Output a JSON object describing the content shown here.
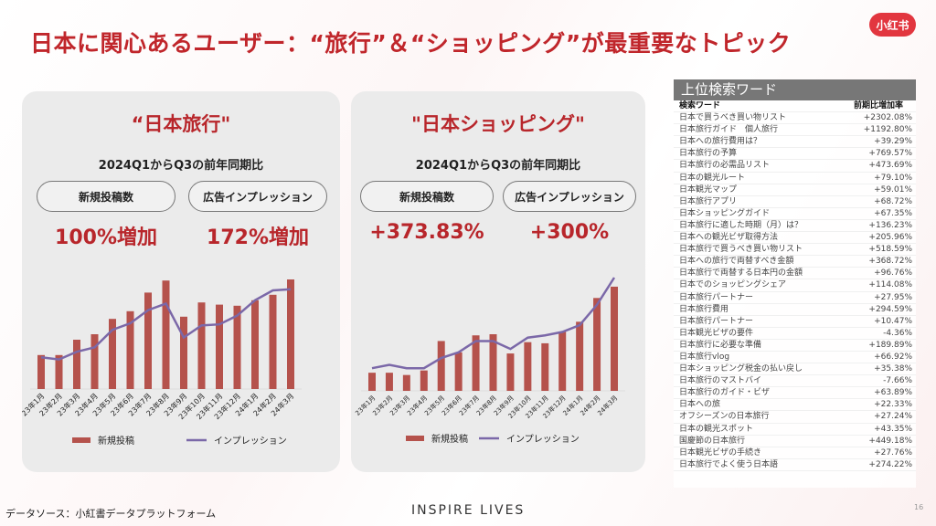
{
  "title": "日本に関心あるユーザー：“旅行”＆“ショッピング”が最重要なトピック",
  "logo": "小红书",
  "panels": [
    {
      "title": "“日本旅行\"",
      "subtitle": "2024Q1からQ3の前年同期比",
      "metric1_label": "新規投稿数",
      "metric1_value": "100%増加",
      "metric2_label": "広告インプレッション",
      "metric2_value": "172%増加"
    },
    {
      "title": "\"日本ショッピング\"",
      "subtitle": "2024Q1からQ3の前年同期比",
      "metric1_label": "新規投稿数",
      "metric1_value": "+373.83%",
      "metric2_label": "広告インプレッション",
      "metric2_value": "+300%"
    }
  ],
  "chart_data": [
    {
      "type": "bar",
      "categories": [
        "23年1月",
        "23年2月",
        "23年3月",
        "23年4月",
        "23年5月",
        "23年6月",
        "23年7月",
        "23年8月",
        "23年9月",
        "23年10月",
        "23年11月",
        "23年12月",
        "24年1月",
        "24年2月",
        "24年3月"
      ],
      "series": [
        {
          "name": "新規投稿",
          "type": "bar",
          "color": "#b5524c",
          "values": [
            31,
            31,
            45,
            50,
            64,
            71,
            88,
            99,
            66,
            79,
            77,
            76,
            81,
            86,
            100
          ]
        },
        {
          "name": "インプレッション",
          "type": "line",
          "color": "#7b68a8",
          "values": [
            29,
            27,
            34,
            38,
            54,
            60,
            72,
            78,
            47,
            58,
            59,
            67,
            81,
            90,
            91
          ]
        }
      ],
      "ylim": [
        0,
        100
      ],
      "grid": false,
      "legend": "bottom"
    },
    {
      "type": "bar",
      "categories": [
        "23年1月",
        "23年2月",
        "23年3月",
        "23年4月",
        "23年5月",
        "23年6月",
        "23年7月",
        "23年8月",
        "23年9月",
        "23年10月",
        "23年11月",
        "23年12月",
        "24年1月",
        "24年2月",
        "24年3月"
      ],
      "series": [
        {
          "name": "新規投稿",
          "type": "bar",
          "color": "#b5524c",
          "values": [
            16,
            16,
            14,
            18,
            44,
            34,
            49,
            50,
            33,
            43,
            42,
            52,
            61,
            82,
            92
          ]
        },
        {
          "name": "インプレッション",
          "type": "line",
          "color": "#7b68a8",
          "values": [
            20,
            23,
            20,
            20,
            29,
            34,
            44,
            44,
            37,
            47,
            49,
            52,
            58,
            76,
            100
          ]
        }
      ],
      "ylim": [
        0,
        100
      ],
      "grid": false,
      "legend": "bottom"
    }
  ],
  "table": {
    "title": "上位検索ワード",
    "col1": "検索ワード",
    "col2": "前期比増加率",
    "rows": [
      [
        "日本で買うべき買い物リスト",
        "+2302.08%"
      ],
      [
        "日本旅行ガイド　個人旅行",
        "+1192.80%"
      ],
      [
        "日本への旅行費用は？",
        "+39.29%"
      ],
      [
        "日本旅行の予算",
        "+769.57%"
      ],
      [
        "日本旅行の必需品リスト",
        "+473.69%"
      ],
      [
        "日本の観光ルート",
        "+79.10%"
      ],
      [
        "日本観光マップ",
        "+59.01%"
      ],
      [
        "日本旅行アプリ",
        "+68.72%"
      ],
      [
        "日本ショッピングガイド",
        "+67.35%"
      ],
      [
        "日本旅行に適した時期（月）は？",
        "+136.23%"
      ],
      [
        "日本への観光ビザ取得方法",
        "+205.96%"
      ],
      [
        "日本旅行で買うべき買い物リスト",
        "+518.59%"
      ],
      [
        "日本への旅行で両替すべき金額",
        "+368.72%"
      ],
      [
        "日本旅行で両替する日本円の金額",
        "+96.76%"
      ],
      [
        "日本でのショッピングシェア",
        "+114.08%"
      ],
      [
        "日本旅行パートナー",
        "+27.95%"
      ],
      [
        "日本旅行費用",
        "+294.59%"
      ],
      [
        "日本旅行パートナー",
        "+10.47%"
      ],
      [
        "日本観光ビザの要件",
        "-4.36%"
      ],
      [
        "日本旅行に必要な準備",
        "+189.89%"
      ],
      [
        "日本旅行vlog",
        "+66.92%"
      ],
      [
        "日本ショッピング税金の払い戻し",
        "+35.38%"
      ],
      [
        "日本旅行のマストバイ",
        "-7.66%"
      ],
      [
        "日本旅行のガイド・ビザ",
        "+63.89%"
      ],
      [
        "日本への旅",
        "+22.33%"
      ],
      [
        "オフシーズンの日本旅行",
        "+27.24%"
      ],
      [
        "日本の観光スポット",
        "+43.35%"
      ],
      [
        "国慶節の日本旅行",
        "+449.18%"
      ],
      [
        "日本観光ビザの手続き",
        "+27.76%"
      ],
      [
        "日本旅行でよく使う日本語",
        "+274.22%"
      ]
    ]
  },
  "footer": {
    "source": "データソース：小紅書データプラットフォーム",
    "brand": "INSPIRE LIVES",
    "page": "16"
  }
}
